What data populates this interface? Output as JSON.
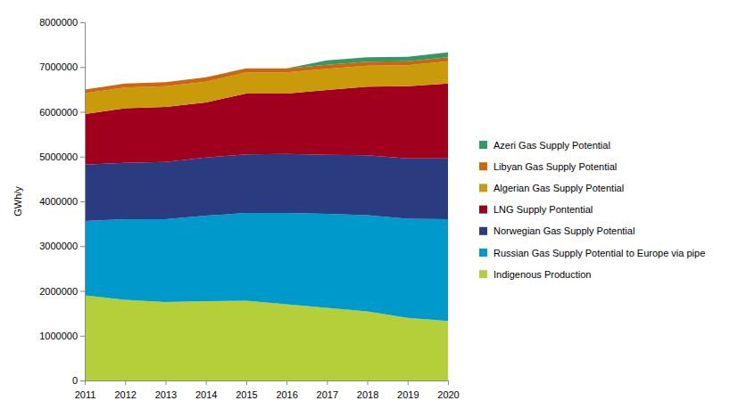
{
  "chart_data": {
    "type": "area",
    "stacked": true,
    "y_label": "GWh/y",
    "x": [
      2011,
      2012,
      2013,
      2014,
      2015,
      2016,
      2017,
      2018,
      2019,
      2020
    ],
    "xlim": [
      2011,
      2020
    ],
    "xticks": [
      2011,
      2012,
      2013,
      2014,
      2015,
      2016,
      2017,
      2018,
      2019,
      2020
    ],
    "ylim": [
      0,
      8000000
    ],
    "yticks": [
      0,
      1000000,
      2000000,
      3000000,
      4000000,
      5000000,
      6000000,
      7000000,
      8000000
    ],
    "legend": "right",
    "series": [
      {
        "name": "Indigenous Production",
        "color": "#b5cf3a",
        "values": [
          1900000,
          1800000,
          1750000,
          1770000,
          1780000,
          1700000,
          1620000,
          1540000,
          1400000,
          1330000
        ]
      },
      {
        "name": "Russian Gas Supply Potential to Europe via pipe",
        "color": "#0099cc",
        "values": [
          1660000,
          1800000,
          1850000,
          1910000,
          1960000,
          2040000,
          2100000,
          2150000,
          2210000,
          2270000
        ]
      },
      {
        "name": "Norwegian Gas Supply Potential",
        "color": "#2a3b80",
        "values": [
          1260000,
          1260000,
          1280000,
          1300000,
          1310000,
          1320000,
          1320000,
          1340000,
          1350000,
          1360000
        ]
      },
      {
        "name": "LNG Supply Pontential",
        "color": "#a0001e",
        "values": [
          1130000,
          1220000,
          1230000,
          1230000,
          1360000,
          1350000,
          1450000,
          1530000,
          1610000,
          1670000
        ]
      },
      {
        "name": "Algerian Gas Supply Potential",
        "color": "#c99a0a",
        "values": [
          470000,
          460000,
          460000,
          460000,
          470000,
          470000,
          470000,
          470000,
          470000,
          500000
        ]
      },
      {
        "name": "Libyan Gas Supply Potential",
        "color": "#cc6611",
        "values": [
          80000,
          90000,
          90000,
          100000,
          90000,
          90000,
          90000,
          90000,
          90000,
          90000
        ]
      },
      {
        "name": "Azeri Gas Supply Potential",
        "color": "#339966",
        "values": [
          0,
          0,
          0,
          0,
          0,
          0,
          100000,
          100000,
          100000,
          110000
        ]
      }
    ]
  }
}
